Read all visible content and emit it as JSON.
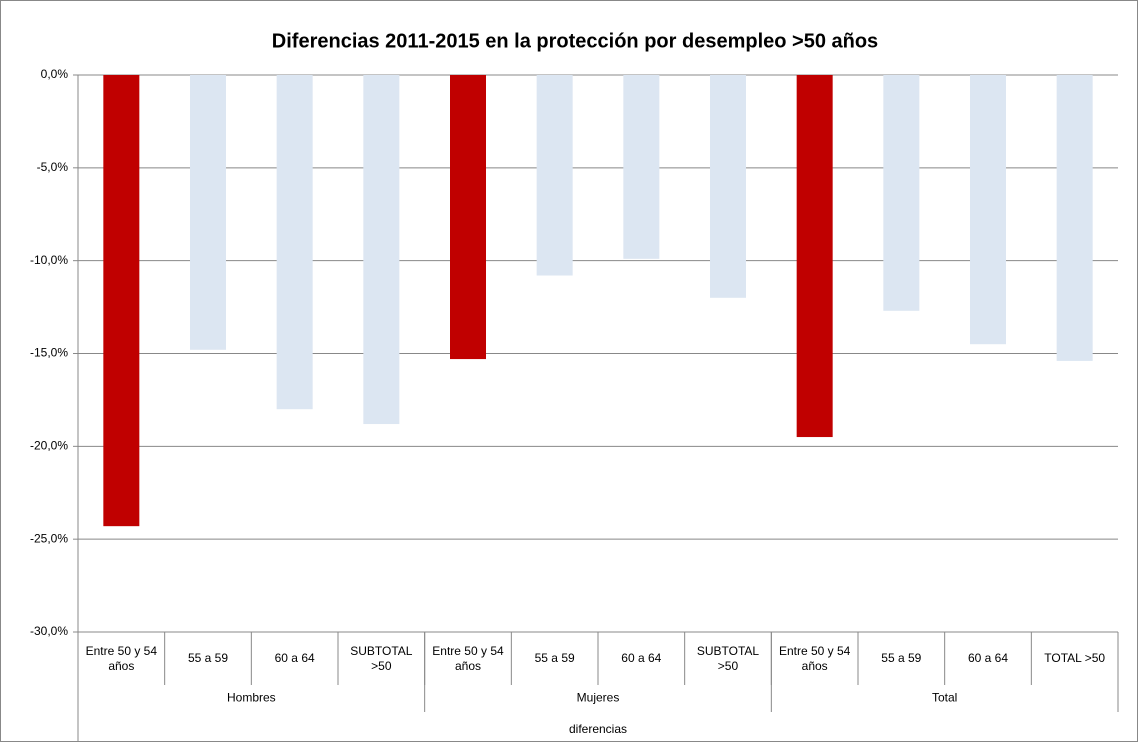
{
  "chart_data": {
    "type": "bar",
    "title": "Diferencias 2011-2015 en la protección por desempleo >50 años",
    "categories": [
      "Entre 50 y 54 años",
      "55 a 59",
      "60 a 64",
      "SUBTOTAL >50",
      "Entre 50 y 54 años",
      "55 a 59",
      "60 a 64",
      "SUBTOTAL >50",
      "Entre 50 y 54 años",
      "55 a 59",
      "60 a 64",
      "TOTAL >50"
    ],
    "groups": [
      "Hombres",
      "Mujeres",
      "Total"
    ],
    "group_title": "diferencias",
    "values": [
      -24.3,
      -14.8,
      -18.0,
      -18.8,
      -15.3,
      -10.8,
      -9.9,
      -12.0,
      -19.5,
      -12.7,
      -14.5,
      -15.4
    ],
    "colors": [
      "#c00000",
      "#dce6f2",
      "#dce6f2",
      "#dce6f2",
      "#c00000",
      "#dce6f2",
      "#dce6f2",
      "#dce6f2",
      "#c00000",
      "#dce6f2",
      "#dce6f2",
      "#dce6f2"
    ],
    "ylim": [
      -30,
      0
    ],
    "yticks": [
      {
        "value": 0,
        "label": "0,0%"
      },
      {
        "value": -5,
        "label": "-5,0%"
      },
      {
        "value": -10,
        "label": "-10,0%"
      },
      {
        "value": -15,
        "label": "-15,0%"
      },
      {
        "value": -20,
        "label": "-20,0%"
      },
      {
        "value": -25,
        "label": "-25,0%"
      },
      {
        "value": -30,
        "label": "-30,0%"
      }
    ],
    "grid": true
  }
}
